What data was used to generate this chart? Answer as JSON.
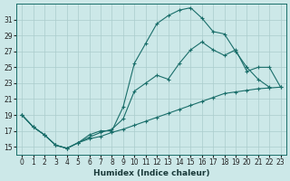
{
  "xlabel": "Humidex (Indice chaleur)",
  "bg_color": "#cce8e8",
  "line_color": "#1a6e6a",
  "grid_color": "#aacccc",
  "xlim": [
    -0.5,
    23.5
  ],
  "ylim": [
    14.0,
    33.0
  ],
  "yticks": [
    15,
    17,
    19,
    21,
    23,
    25,
    27,
    29,
    31
  ],
  "xticks": [
    0,
    1,
    2,
    3,
    4,
    5,
    6,
    7,
    8,
    9,
    10,
    11,
    12,
    13,
    14,
    15,
    16,
    17,
    18,
    19,
    20,
    21,
    22,
    23
  ],
  "line1_x": [
    0,
    1,
    2,
    3,
    4,
    5,
    6,
    7,
    8,
    9,
    10,
    11,
    12,
    13,
    14,
    15,
    16,
    17,
    18,
    19,
    20,
    21,
    22
  ],
  "line1_y": [
    19,
    17.5,
    16.5,
    15.2,
    14.8,
    15.5,
    16.5,
    17.0,
    17.0,
    20.0,
    25.5,
    28.0,
    30.5,
    31.5,
    32.2,
    32.5,
    31.2,
    29.5,
    29.2,
    27.0,
    25.0,
    23.5,
    22.5
  ],
  "line2_x": [
    0,
    1,
    2,
    3,
    4,
    5,
    6,
    7,
    8,
    9,
    10,
    11,
    12,
    13,
    14,
    15,
    16,
    17,
    18,
    19,
    20,
    21,
    22,
    23
  ],
  "line2_y": [
    19,
    17.5,
    16.5,
    15.2,
    14.8,
    15.5,
    16.2,
    16.8,
    17.2,
    18.5,
    22.0,
    23.0,
    24.0,
    23.5,
    25.5,
    27.2,
    28.2,
    27.2,
    26.5,
    27.2,
    24.5,
    25.0,
    25.0,
    22.5
  ],
  "line3_x": [
    0,
    1,
    2,
    3,
    4,
    5,
    6,
    7,
    8,
    9,
    10,
    11,
    12,
    13,
    14,
    15,
    16,
    17,
    18,
    19,
    20,
    21,
    22,
    23
  ],
  "line3_y": [
    19,
    17.5,
    16.5,
    15.2,
    14.8,
    15.5,
    16.0,
    16.3,
    16.8,
    17.2,
    17.7,
    18.2,
    18.7,
    19.2,
    19.7,
    20.2,
    20.7,
    21.2,
    21.7,
    21.9,
    22.1,
    22.3,
    22.4,
    22.5
  ]
}
